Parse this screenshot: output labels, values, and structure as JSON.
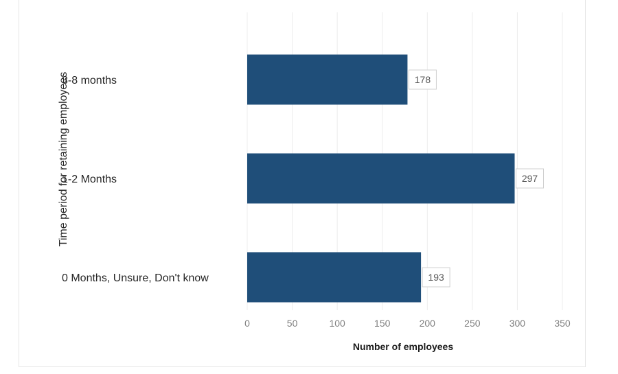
{
  "chart_data": {
    "type": "bar",
    "orientation": "horizontal",
    "categories": [
      "3-8 months",
      "1-2 Months",
      "0 Months, Unsure, Don't know"
    ],
    "values": [
      178,
      297,
      193
    ],
    "xlabel": "Number of employees",
    "ylabel": "Time period for retaining employees",
    "xlim": [
      0,
      350
    ],
    "xticks": [
      "0",
      "50",
      "100",
      "150",
      "200",
      "250",
      "300",
      "350"
    ],
    "data_labels": [
      "178",
      "297",
      "193"
    ],
    "grid": "vertical",
    "colors": {
      "bar": "#1f4e79",
      "grid": "#ececec",
      "label_border": "#d0d0d0"
    }
  }
}
